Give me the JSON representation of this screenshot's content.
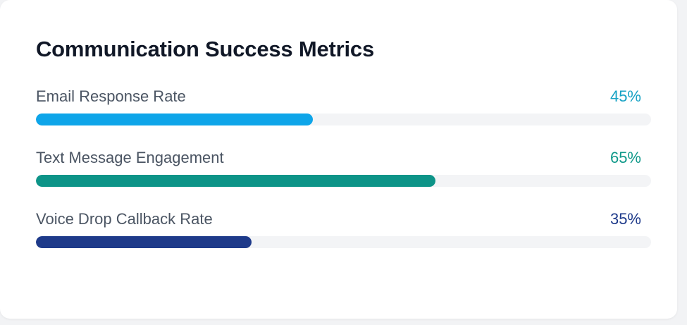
{
  "card": {
    "title": "Communication Success Metrics"
  },
  "metrics": [
    {
      "label": "Email Response Rate",
      "value_text": "45%",
      "percent": 45,
      "value_color": "#16a2c4",
      "bar_color": "#0ea5e9"
    },
    {
      "label": "Text Message Engagement",
      "value_text": "65%",
      "percent": 65,
      "value_color": "#10998a",
      "bar_color": "#0d9488"
    },
    {
      "label": "Voice Drop Callback Rate",
      "value_text": "35%",
      "percent": 35,
      "value_color": "#1e3a8a",
      "bar_color": "#1e3a8a"
    }
  ]
}
